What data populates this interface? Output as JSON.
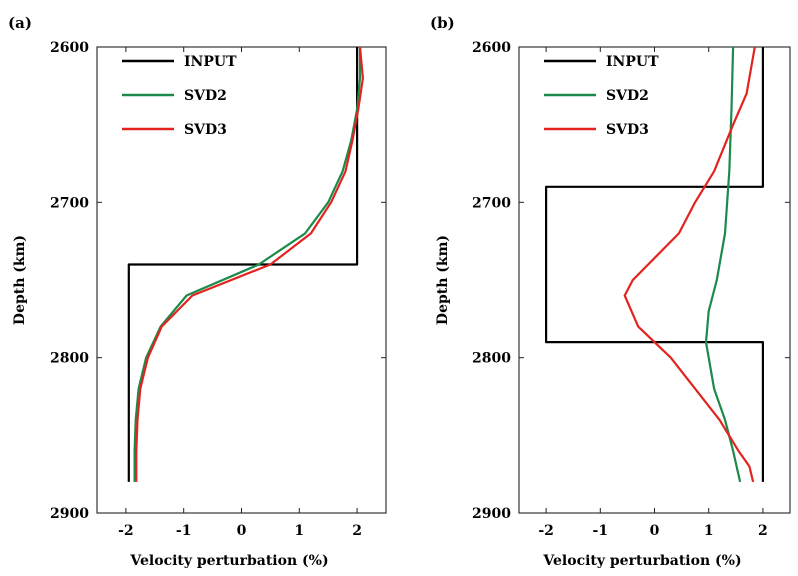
{
  "chart_data": [
    {
      "type": "line",
      "panel_label": "(a)",
      "xlabel": "Velocity perturbation (%)",
      "ylabel": "Depth (km)",
      "xlim": [
        -2.5,
        2.5
      ],
      "ylim": [
        2600,
        2900
      ],
      "y_inverted": true,
      "xticks": [
        "-2",
        "-1",
        "0",
        "1",
        "2"
      ],
      "xtick_values": [
        -2,
        -1,
        0,
        1,
        2
      ],
      "yticks": [
        "2600",
        "2700",
        "2800",
        "2900"
      ],
      "ytick_values": [
        2600,
        2700,
        2800,
        2900
      ],
      "legend": "top-left",
      "series": [
        {
          "name": "INPUT",
          "color": "#000000",
          "points": [
            [
              2.0,
              2600
            ],
            [
              2.0,
              2740
            ],
            [
              -1.95,
              2740
            ],
            [
              -1.95,
              2880
            ]
          ]
        },
        {
          "name": "SVD2",
          "color": "#1b8a4a",
          "points": [
            [
              2.05,
              2600
            ],
            [
              2.05,
              2620
            ],
            [
              2.0,
              2640
            ],
            [
              1.9,
              2660
            ],
            [
              1.75,
              2680
            ],
            [
              1.5,
              2700
            ],
            [
              1.1,
              2720
            ],
            [
              0.3,
              2740
            ],
            [
              -0.95,
              2760
            ],
            [
              -1.4,
              2780
            ],
            [
              -1.65,
              2800
            ],
            [
              -1.78,
              2820
            ],
            [
              -1.83,
              2840
            ],
            [
              -1.85,
              2860
            ],
            [
              -1.85,
              2880
            ]
          ]
        },
        {
          "name": "SVD3",
          "color": "#e3231f",
          "points": [
            [
              2.05,
              2600
            ],
            [
              2.1,
              2620
            ],
            [
              2.02,
              2640
            ],
            [
              1.92,
              2660
            ],
            [
              1.8,
              2680
            ],
            [
              1.55,
              2700
            ],
            [
              1.2,
              2720
            ],
            [
              0.5,
              2740
            ],
            [
              -0.85,
              2760
            ],
            [
              -1.38,
              2780
            ],
            [
              -1.62,
              2800
            ],
            [
              -1.75,
              2820
            ],
            [
              -1.8,
              2840
            ],
            [
              -1.82,
              2860
            ],
            [
              -1.82,
              2880
            ]
          ]
        }
      ]
    },
    {
      "type": "line",
      "panel_label": "(b)",
      "xlabel": "Velocity perturbation (%)",
      "ylabel": "Depth (km)",
      "xlim": [
        -2.5,
        2.5
      ],
      "ylim": [
        2600,
        2900
      ],
      "y_inverted": true,
      "xticks": [
        "-2",
        "-1",
        "0",
        "1",
        "2"
      ],
      "xtick_values": [
        -2,
        -1,
        0,
        1,
        2
      ],
      "yticks": [
        "2600",
        "2700",
        "2800",
        "2900"
      ],
      "ytick_values": [
        2600,
        2700,
        2800,
        2900
      ],
      "legend": "top-left",
      "series": [
        {
          "name": "INPUT",
          "color": "#000000",
          "points": [
            [
              2.0,
              2600
            ],
            [
              2.0,
              2690
            ],
            [
              -2.0,
              2690
            ],
            [
              -2.0,
              2790
            ],
            [
              2.0,
              2790
            ],
            [
              2.0,
              2880
            ]
          ]
        },
        {
          "name": "SVD2",
          "color": "#1b8a4a",
          "points": [
            [
              1.45,
              2600
            ],
            [
              1.42,
              2640
            ],
            [
              1.38,
              2680
            ],
            [
              1.3,
              2720
            ],
            [
              1.15,
              2750
            ],
            [
              1.0,
              2770
            ],
            [
              0.95,
              2790
            ],
            [
              1.0,
              2800
            ],
            [
              1.1,
              2820
            ],
            [
              1.3,
              2840
            ],
            [
              1.45,
              2860
            ],
            [
              1.58,
              2880
            ]
          ]
        },
        {
          "name": "SVD3",
          "color": "#e3231f",
          "points": [
            [
              1.85,
              2600
            ],
            [
              1.7,
              2630
            ],
            [
              1.45,
              2650
            ],
            [
              1.1,
              2680
            ],
            [
              0.75,
              2700
            ],
            [
              0.45,
              2720
            ],
            [
              -0.4,
              2750
            ],
            [
              -0.55,
              2760
            ],
            [
              -0.3,
              2780
            ],
            [
              0.3,
              2800
            ],
            [
              0.75,
              2820
            ],
            [
              1.2,
              2840
            ],
            [
              1.55,
              2860
            ],
            [
              1.75,
              2870
            ],
            [
              1.82,
              2880
            ]
          ]
        }
      ]
    }
  ]
}
